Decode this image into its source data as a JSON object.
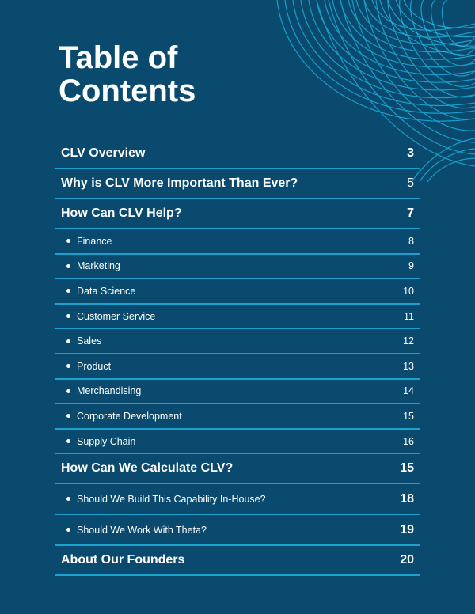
{
  "title": "Table of Contents",
  "title_line1": "Table of",
  "title_line2": "Contents",
  "colors": {
    "background": "#0a4a6e",
    "accent": "#1aa3cf",
    "text": "#ffffff"
  },
  "entries": [
    {
      "label": "CLV Overview",
      "page": "3",
      "level": "main"
    },
    {
      "label": "Why is CLV More Important Than Ever?",
      "page": "5",
      "level": "main",
      "page_style": "regular"
    },
    {
      "label": "How Can CLV Help?",
      "page": "7",
      "level": "main"
    },
    {
      "label": "Finance",
      "page": "8",
      "level": "sub"
    },
    {
      "label": "Marketing",
      "page": "9",
      "level": "sub"
    },
    {
      "label": "Data Science",
      "page": "10",
      "level": "sub"
    },
    {
      "label": "Customer Service",
      "page": "11",
      "level": "sub"
    },
    {
      "label": "Sales",
      "page": "12",
      "level": "sub"
    },
    {
      "label": "Product",
      "page": "13",
      "level": "sub"
    },
    {
      "label": "Merchandising",
      "page": "14",
      "level": "sub"
    },
    {
      "label": "Corporate Development",
      "page": "15",
      "level": "sub"
    },
    {
      "label": "Supply Chain",
      "page": "16",
      "level": "sub"
    },
    {
      "label": "How Can We Calculate CLV?",
      "page": "15",
      "level": "main"
    },
    {
      "label": "Should We Build This Capability In-House?",
      "page": "18",
      "level": "sub2"
    },
    {
      "label": "Should We Work With Theta?",
      "page": "19",
      "level": "sub2"
    },
    {
      "label": "About Our Founders",
      "page": "20",
      "level": "main"
    }
  ]
}
